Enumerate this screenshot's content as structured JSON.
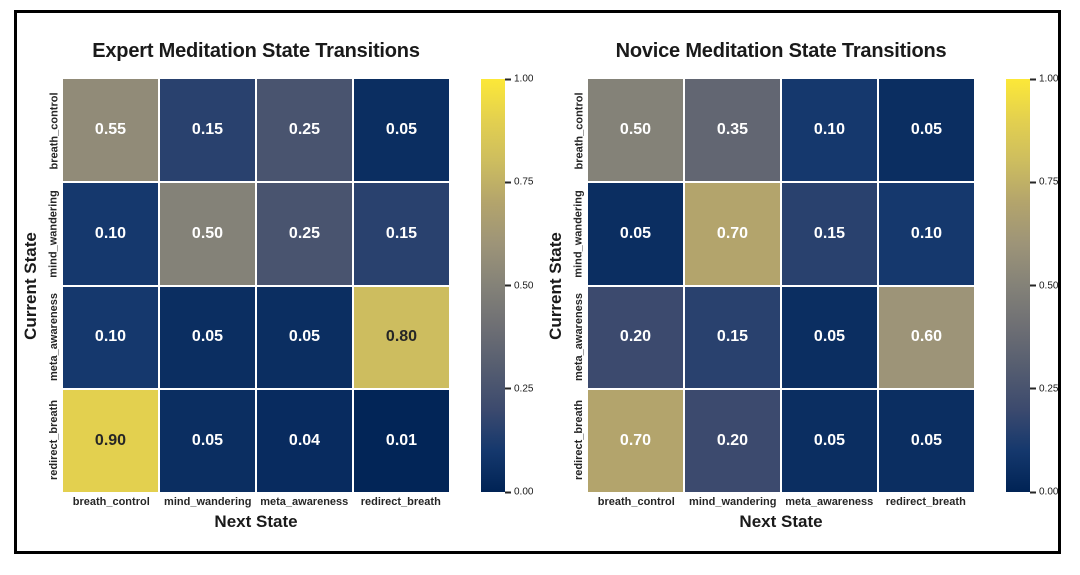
{
  "figure": {
    "background": "#ffffff",
    "frame_color": "#000000"
  },
  "colormap": {
    "name": "cividis",
    "stops": [
      [
        0.0,
        "#002355"
      ],
      [
        0.1,
        "#15386d"
      ],
      [
        0.2,
        "#3c4a6e"
      ],
      [
        0.3,
        "#555d70"
      ],
      [
        0.4,
        "#6e6f74"
      ],
      [
        0.5,
        "#848278"
      ],
      [
        0.6,
        "#9d9478"
      ],
      [
        0.7,
        "#b3a46c"
      ],
      [
        0.8,
        "#cdbd5f"
      ],
      [
        0.9,
        "#e3d04f"
      ],
      [
        1.0,
        "#fce838"
      ]
    ],
    "dark_text_threshold": 0.75,
    "dark_text": "#262626",
    "light_text": "#ffffff"
  },
  "chart_data": [
    {
      "type": "heatmap",
      "title": "Expert Meditation State Transitions",
      "xlabel": "Next State",
      "ylabel": "Current State",
      "x_ticklabels": [
        "breath_control",
        "mind_wandering",
        "meta_awareness",
        "redirect_breath"
      ],
      "y_ticklabels": [
        "breath_control",
        "mind_wandering",
        "meta_awareness",
        "redirect_breath"
      ],
      "matrix": [
        [
          0.55,
          0.15,
          0.25,
          0.05
        ],
        [
          0.1,
          0.5,
          0.25,
          0.15
        ],
        [
          0.1,
          0.05,
          0.05,
          0.8
        ],
        [
          0.9,
          0.05,
          0.04,
          0.01
        ]
      ],
      "vmin": 0.0,
      "vmax": 1.0,
      "colorbar_ticklabels": [
        "1.00",
        "0.75",
        "0.50",
        "0.25",
        "0.00"
      ],
      "annotation_decimals": 2
    },
    {
      "type": "heatmap",
      "title": "Novice Meditation State Transitions",
      "xlabel": "Next State",
      "ylabel": "Current State",
      "x_ticklabels": [
        "breath_control",
        "mind_wandering",
        "meta_awareness",
        "redirect_breath"
      ],
      "y_ticklabels": [
        "breath_control",
        "mind_wandering",
        "meta_awareness",
        "redirect_breath"
      ],
      "matrix": [
        [
          0.5,
          0.35,
          0.1,
          0.05
        ],
        [
          0.05,
          0.7,
          0.15,
          0.1
        ],
        [
          0.2,
          0.15,
          0.05,
          0.6
        ],
        [
          0.7,
          0.2,
          0.05,
          0.05
        ]
      ],
      "vmin": 0.0,
      "vmax": 1.0,
      "colorbar_ticklabels": [
        "1.00",
        "0.75",
        "0.50",
        "0.25",
        "0.00"
      ],
      "annotation_decimals": 2
    }
  ]
}
